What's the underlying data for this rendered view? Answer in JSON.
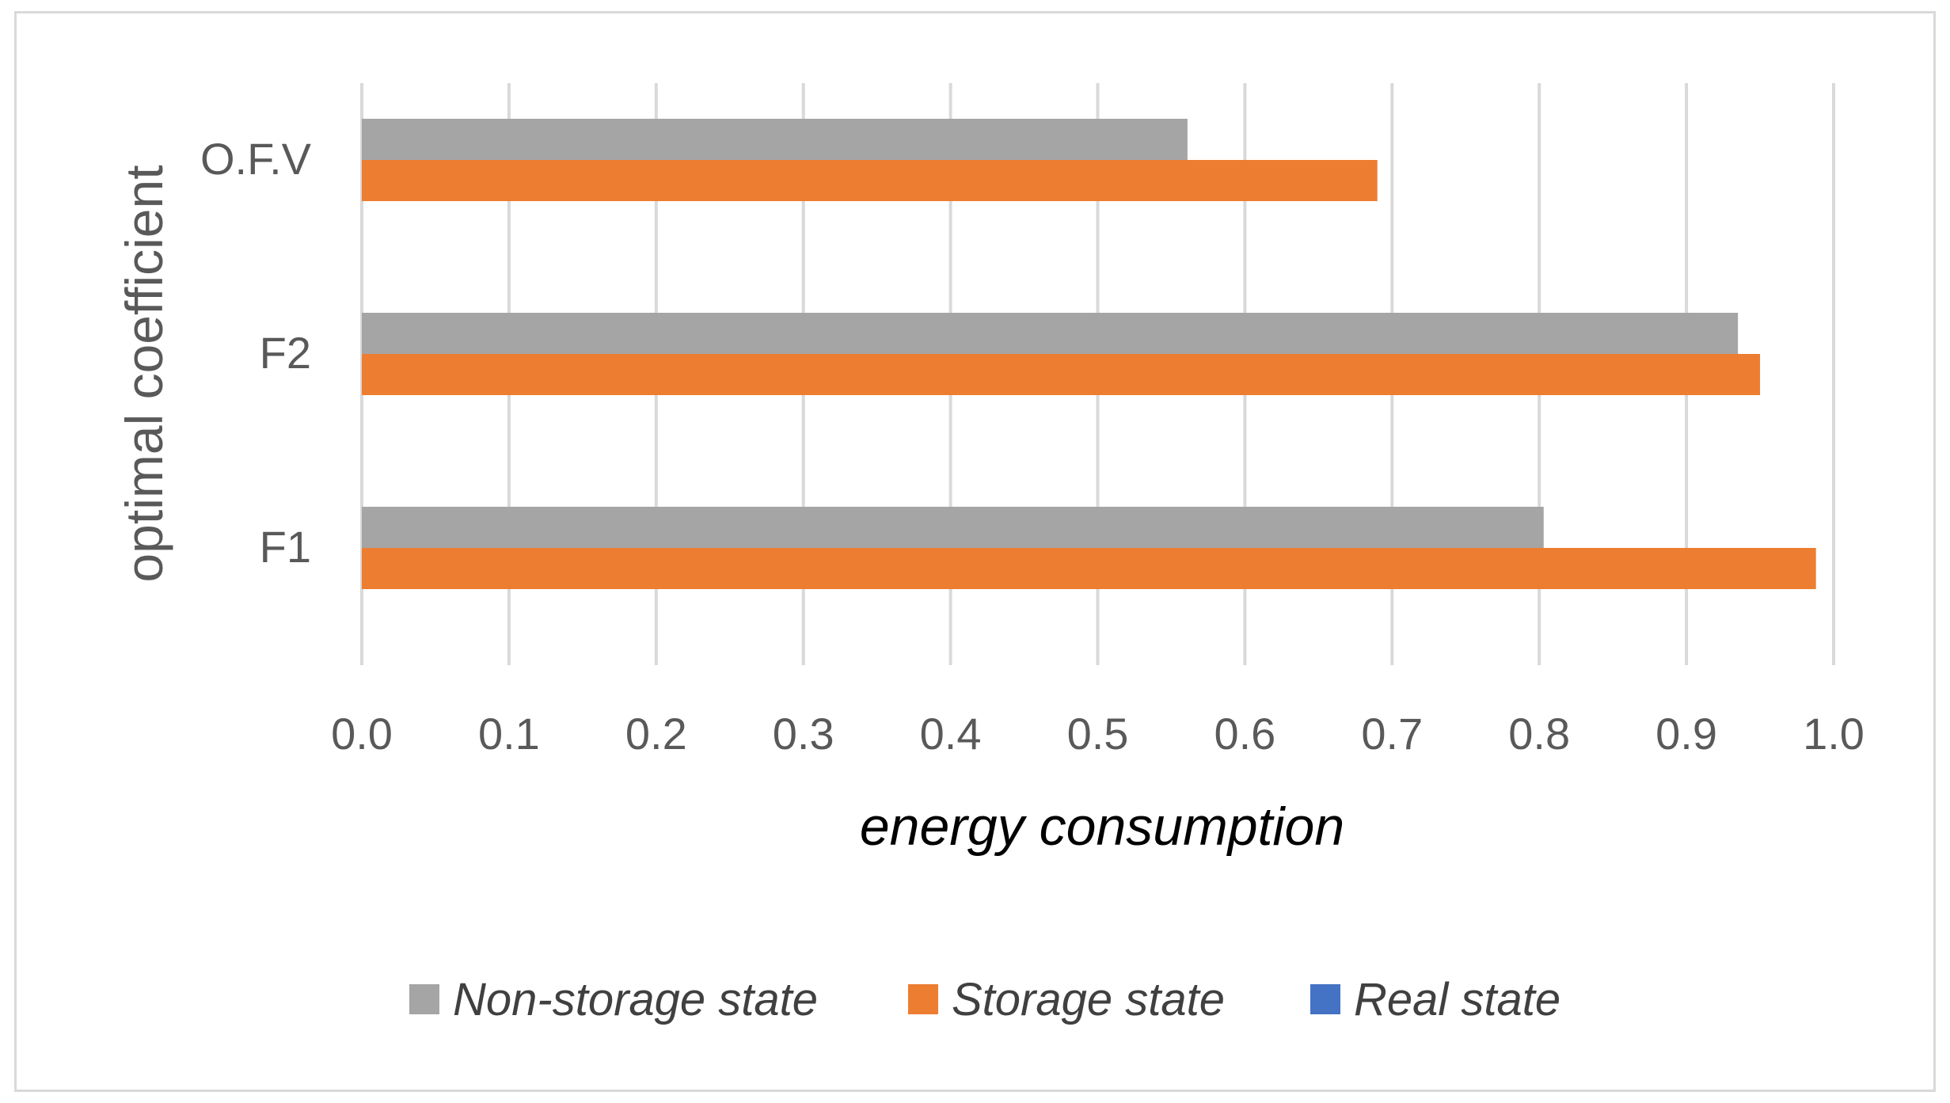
{
  "chart_data": {
    "type": "bar",
    "orientation": "horizontal",
    "title": "",
    "xlabel": "energy consumption",
    "ylabel": "optimal coefficient",
    "xlim": [
      0.0,
      1.0
    ],
    "xticks": [
      "0.0",
      "0.1",
      "0.2",
      "0.3",
      "0.4",
      "0.5",
      "0.6",
      "0.7",
      "0.8",
      "0.9",
      "1.0"
    ],
    "grid": true,
    "legend_position": "bottom",
    "categories": [
      "F1",
      "F2",
      "O.F.V"
    ],
    "series": [
      {
        "name": "Non-storage state",
        "color": "#a5a5a5",
        "values": [
          0.803,
          0.935,
          0.561
        ]
      },
      {
        "name": "Storage state",
        "color": "#ed7d31",
        "values": [
          0.988,
          0.95,
          0.69
        ]
      },
      {
        "name": "Real state",
        "color": "#4472c4",
        "values": [
          0,
          0,
          0
        ]
      }
    ]
  }
}
